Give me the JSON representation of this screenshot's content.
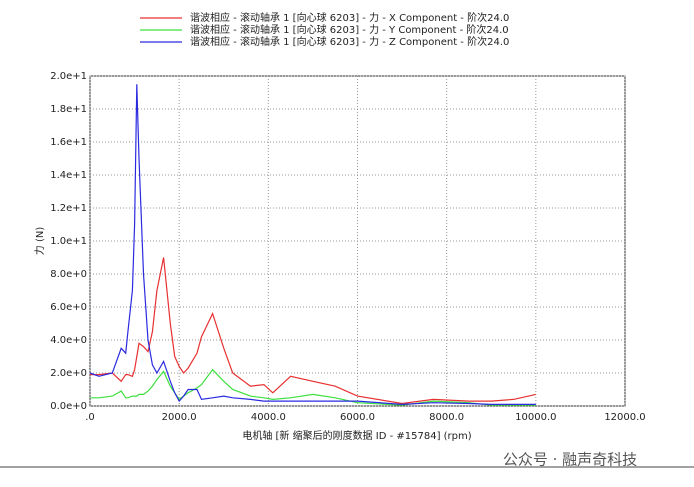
{
  "chart_data": {
    "type": "line",
    "xlabel": "电机轴 [新 缩聚后的刚度数据 ID - #15784] (rpm)",
    "ylabel": "力 (N)",
    "watermark": "公众号 · 融声奇科技",
    "x": [
      0,
      200,
      500,
      700,
      800,
      850,
      950,
      1000,
      1050,
      1100,
      1200,
      1300,
      1400,
      1500,
      1650,
      1800,
      1900,
      2000,
      2100,
      2200,
      2400,
      2500,
      2750,
      3000,
      3200,
      3600,
      3900,
      4100,
      4500,
      5000,
      5500,
      6000,
      7000,
      7700,
      8500,
      9000,
      9500,
      10000
    ],
    "series": [
      {
        "name": "谐波相应 - 滚动轴承 1 [向心球 6203] - 力 - X Component - 阶次24.0",
        "color": "#e83030",
        "values": [
          1.9,
          1.9,
          2.0,
          1.5,
          1.9,
          1.9,
          1.8,
          2.2,
          3.0,
          3.8,
          3.6,
          3.3,
          4.5,
          7.0,
          9.0,
          5.0,
          3.0,
          2.4,
          2.0,
          2.3,
          3.2,
          4.2,
          5.6,
          3.5,
          2.0,
          1.2,
          1.3,
          0.8,
          1.8,
          1.5,
          1.2,
          0.6,
          0.15,
          0.4,
          0.3,
          0.3,
          0.4,
          0.7
        ]
      },
      {
        "name": "谐波相应 - 滚动轴承 1 [向心球 6203] - 力 - Y Component - 阶次24.0",
        "color": "#3ee03e",
        "values": [
          0.5,
          0.5,
          0.6,
          0.9,
          0.5,
          0.5,
          0.6,
          0.6,
          0.6,
          0.7,
          0.7,
          0.9,
          1.2,
          1.6,
          2.1,
          1.2,
          0.8,
          0.4,
          0.6,
          0.8,
          1.1,
          1.3,
          2.2,
          1.5,
          1.0,
          0.6,
          0.5,
          0.4,
          0.5,
          0.7,
          0.5,
          0.2,
          0.05,
          0.3,
          0.2,
          0.05,
          0.05,
          0.05
        ]
      },
      {
        "name": "谐波相应 - 滚动轴承 1 [向心球 6203] - 力 - Z Component - 阶次24.0",
        "color": "#2a2ae0",
        "values": [
          2.0,
          1.8,
          2.0,
          3.5,
          3.2,
          4.5,
          7.0,
          11.0,
          19.5,
          15.0,
          8.0,
          4.0,
          2.5,
          2.0,
          2.7,
          1.5,
          0.8,
          0.3,
          0.6,
          1.0,
          1.0,
          0.4,
          0.5,
          0.6,
          0.5,
          0.4,
          0.3,
          0.3,
          0.3,
          0.3,
          0.3,
          0.3,
          0.1,
          0.2,
          0.15,
          0.1,
          0.1,
          0.1
        ]
      }
    ],
    "xlim": [
      0,
      12000
    ],
    "xticks": [
      {
        "value": 0,
        "label": ".0"
      },
      {
        "value": 2000,
        "label": "2000.0"
      },
      {
        "value": 4000,
        "label": "4000.0"
      },
      {
        "value": 6000,
        "label": "6000.0"
      },
      {
        "value": 8000,
        "label": "8000.0"
      },
      {
        "value": 10000,
        "label": "10000.0"
      },
      {
        "value": 12000,
        "label": "12000.0"
      }
    ],
    "ylim": [
      0,
      20
    ],
    "yticks": [
      {
        "value": 0,
        "label": "0.0e+0"
      },
      {
        "value": 2,
        "label": "2.0e+0"
      },
      {
        "value": 4,
        "label": "4.0e+0"
      },
      {
        "value": 6,
        "label": "6.0e+0"
      },
      {
        "value": 8,
        "label": "8.0e+0"
      },
      {
        "value": 10,
        "label": "1.0e+1"
      },
      {
        "value": 12,
        "label": "1.2e+1"
      },
      {
        "value": 14,
        "label": "1.4e+1"
      },
      {
        "value": 16,
        "label": "1.6e+1"
      },
      {
        "value": 18,
        "label": "1.8e+1"
      },
      {
        "value": 20,
        "label": "2.0e+1"
      }
    ],
    "grid": true
  }
}
